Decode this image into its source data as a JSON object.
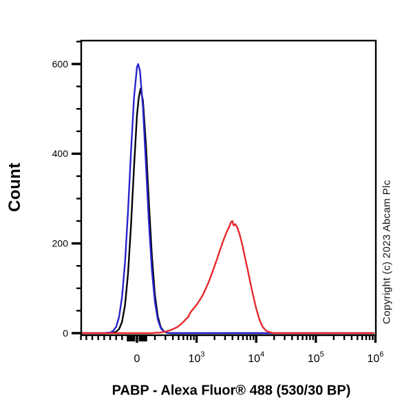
{
  "figure": {
    "y_axis_title": "Count",
    "x_axis_title": "PABP - Alexa Fluor® 488 (530/30 BP)",
    "copyright": "Copyright (c) 2023 Abcam Plc"
  },
  "chart_data": {
    "type": "line",
    "chart_kind": "flow-cytometry-histogram",
    "title": "",
    "xlabel": "PABP - Alexa Fluor® 488 (530/30 BP)",
    "ylabel": "Count",
    "grid": false,
    "legend": "none",
    "x_axis": {
      "scale": "biexponential",
      "u_note": "u units: 0 = zero tick; u = log10(value)-2 for value >= 100, so 1=10^3, 2=10^4, 3=10^5, 4=10^6",
      "u_range": [
        -0.948,
        4.0
      ],
      "major_ticks": [
        {
          "u": 0,
          "label": "0"
        },
        {
          "u": 1,
          "base": "10",
          "exp": "3"
        },
        {
          "u": 2,
          "base": "10",
          "exp": "4"
        },
        {
          "u": 3,
          "base": "10",
          "exp": "5"
        },
        {
          "u": 4,
          "base": "10",
          "exp": "6"
        }
      ],
      "minor_ticks_linear_u": [
        -0.94,
        -0.85,
        -0.75,
        -0.65,
        -0.55,
        -0.45,
        -0.35,
        -0.25
      ],
      "cluster_ticks_u": [
        -0.15,
        -0.115,
        -0.08,
        -0.05,
        0.05,
        0.08,
        0.115,
        0.15
      ],
      "log_minor_offsets": [
        0.301,
        0.477,
        0.602,
        0.699,
        0.778,
        0.845,
        0.903,
        0.954
      ],
      "log_decades": [
        0,
        1,
        2,
        3
      ]
    },
    "y_axis": {
      "label": "Count",
      "count_range": [
        -5,
        652
      ],
      "major_ticks": [
        0,
        200,
        400,
        600
      ],
      "minor_ticks": [
        50,
        100,
        150,
        250,
        300,
        350,
        450,
        500,
        550,
        650
      ]
    },
    "series": [
      {
        "name": "black-curve",
        "color": "#000000",
        "peak": {
          "u": 0.06,
          "count": 545
        },
        "points": [
          [
            -0.94,
            0
          ],
          [
            -0.5,
            0
          ],
          [
            -0.45,
            1
          ],
          [
            -0.4,
            1
          ],
          [
            -0.35,
            3
          ],
          [
            -0.3,
            9
          ],
          [
            -0.25,
            25
          ],
          [
            -0.2,
            63
          ],
          [
            -0.15,
            133
          ],
          [
            -0.1,
            240
          ],
          [
            -0.05,
            370
          ],
          [
            0,
            486
          ],
          [
            0.03,
            525
          ],
          [
            0.06,
            545
          ],
          [
            0.1,
            518
          ],
          [
            0.15,
            421
          ],
          [
            0.2,
            291
          ],
          [
            0.25,
            172
          ],
          [
            0.3,
            86
          ],
          [
            0.35,
            37
          ],
          [
            0.4,
            13
          ],
          [
            0.45,
            4
          ],
          [
            0.5,
            1
          ],
          [
            0.55,
            0
          ],
          [
            1,
            0
          ],
          [
            2,
            0
          ],
          [
            3,
            0
          ],
          [
            3.97,
            0
          ]
        ]
      },
      {
        "name": "blue-curve",
        "color": "#2524cb",
        "peak": {
          "u": 0.02,
          "count": 600
        },
        "points": [
          [
            -0.94,
            0
          ],
          [
            -0.55,
            0
          ],
          [
            -0.5,
            1
          ],
          [
            -0.45,
            1
          ],
          [
            -0.4,
            5
          ],
          [
            -0.35,
            14
          ],
          [
            -0.3,
            36
          ],
          [
            -0.25,
            81
          ],
          [
            -0.2,
            159
          ],
          [
            -0.15,
            272
          ],
          [
            -0.1,
            404
          ],
          [
            -0.05,
            525
          ],
          [
            0,
            593
          ],
          [
            0.02,
            600
          ],
          [
            0.05,
            585
          ],
          [
            0.1,
            503
          ],
          [
            0.15,
            377
          ],
          [
            0.2,
            247
          ],
          [
            0.25,
            140
          ],
          [
            0.3,
            70
          ],
          [
            0.35,
            30
          ],
          [
            0.4,
            11
          ],
          [
            0.45,
            4
          ],
          [
            0.5,
            1
          ],
          [
            0.55,
            0
          ],
          [
            1,
            0
          ],
          [
            2,
            0
          ],
          [
            3,
            0
          ],
          [
            3.97,
            0
          ]
        ]
      },
      {
        "name": "red-curve",
        "color": "#e8272b",
        "peak": {
          "u": 1.6,
          "count": 250
        },
        "points": [
          [
            -0.94,
            0
          ],
          [
            0.25,
            0
          ],
          [
            0.32,
            1
          ],
          [
            0.38,
            1
          ],
          [
            0.42,
            2
          ],
          [
            0.47,
            3
          ],
          [
            0.52,
            5
          ],
          [
            0.57,
            7
          ],
          [
            0.62,
            10
          ],
          [
            0.67,
            13
          ],
          [
            0.72,
            18
          ],
          [
            0.77,
            24
          ],
          [
            0.82,
            31
          ],
          [
            0.86,
            36
          ],
          [
            0.9,
            47
          ],
          [
            0.95,
            55
          ],
          [
            1,
            63
          ],
          [
            1.05,
            73
          ],
          [
            1.1,
            84
          ],
          [
            1.15,
            98
          ],
          [
            1.2,
            113
          ],
          [
            1.25,
            131
          ],
          [
            1.3,
            149
          ],
          [
            1.35,
            168
          ],
          [
            1.4,
            188
          ],
          [
            1.45,
            207
          ],
          [
            1.5,
            224
          ],
          [
            1.55,
            238
          ],
          [
            1.58,
            248
          ],
          [
            1.6,
            250
          ],
          [
            1.62,
            240
          ],
          [
            1.65,
            243
          ],
          [
            1.68,
            236
          ],
          [
            1.72,
            221
          ],
          [
            1.76,
            201
          ],
          [
            1.8,
            176
          ],
          [
            1.85,
            146
          ],
          [
            1.9,
            114
          ],
          [
            1.95,
            83
          ],
          [
            2,
            55
          ],
          [
            2.05,
            32
          ],
          [
            2.1,
            16
          ],
          [
            2.15,
            7
          ],
          [
            2.2,
            3
          ],
          [
            2.26,
            1
          ],
          [
            2.32,
            0
          ],
          [
            3,
            0
          ],
          [
            3.97,
            0
          ]
        ]
      }
    ]
  }
}
